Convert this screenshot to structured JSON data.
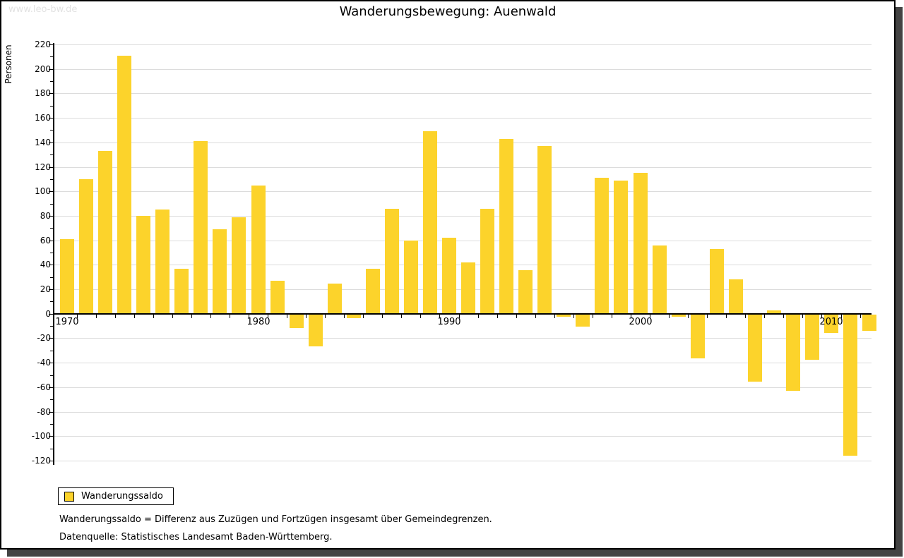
{
  "watermark": "www.leo-bw.de",
  "title": "Wanderungsbewegung: Auenwald",
  "y_axis_label": "Personen",
  "legend": {
    "label": "Wanderungssaldo"
  },
  "footnotes": [
    "Wanderungssaldo = Differenz aus Zuzügen und Fortzügen insgesamt über Gemeindegrenzen.",
    "Datenquelle: Statistisches Landesamt Baden-Württemberg."
  ],
  "colors": {
    "bar": "#fcd32b",
    "grid": "#dcdcdc",
    "axis": "#000000",
    "watermark": "#e2e2e2",
    "shadow": "#434343"
  },
  "chart_data": {
    "type": "bar",
    "title": "Wanderungsbewegung: Auenwald",
    "xlabel": "",
    "ylabel": "Personen",
    "ylim": [
      -120,
      220
    ],
    "ytick_step": 20,
    "yminor_step": 10,
    "grid": true,
    "legend_position": "bottom-left",
    "xtick_labels": [
      1970,
      1980,
      1990,
      2000,
      2010
    ],
    "x": [
      1970,
      1971,
      1972,
      1973,
      1974,
      1975,
      1976,
      1977,
      1978,
      1979,
      1980,
      1981,
      1982,
      1983,
      1984,
      1985,
      1986,
      1987,
      1988,
      1989,
      1990,
      1991,
      1992,
      1993,
      1994,
      1995,
      1996,
      1997,
      1998,
      1999,
      2000,
      2001,
      2002,
      2003,
      2004,
      2005,
      2006,
      2007,
      2008,
      2009,
      2010,
      2011,
      2012
    ],
    "series": [
      {
        "name": "Wanderungssaldo",
        "values": [
          61,
          110,
          133,
          211,
          80,
          85,
          37,
          141,
          69,
          79,
          105,
          27,
          -11,
          -26,
          25,
          -3,
          37,
          86,
          60,
          149,
          62,
          42,
          86,
          143,
          36,
          137,
          -2,
          -10,
          111,
          109,
          115,
          56,
          -2,
          -36,
          53,
          28,
          -55,
          3,
          -62,
          -37,
          -15,
          -115,
          -13
        ]
      }
    ]
  }
}
